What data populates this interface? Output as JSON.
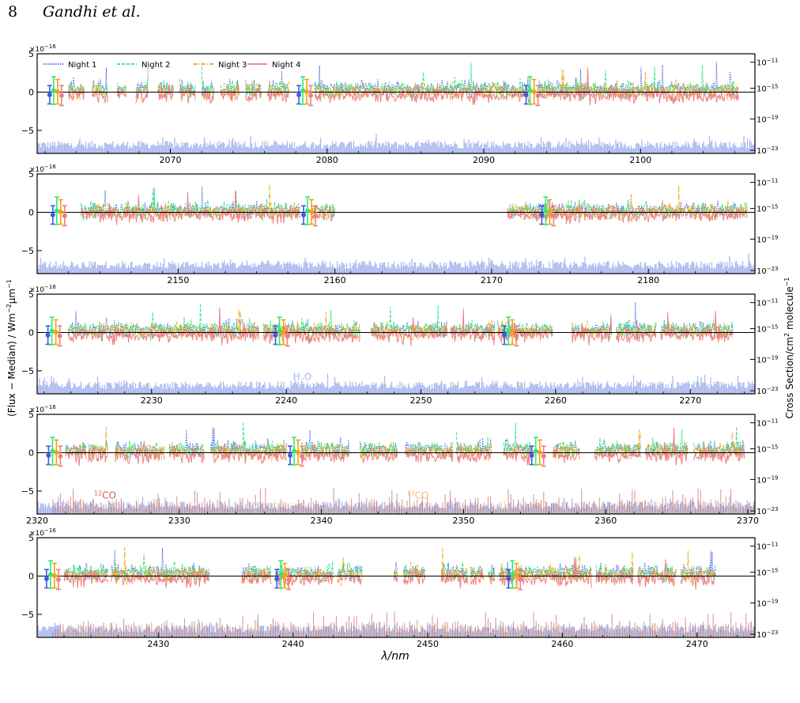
{
  "page": {
    "number": "8",
    "authors": "Gandhi et al."
  },
  "colors": {
    "night1": "#3a5ee0",
    "night2": "#2fe87a",
    "night3": "#f5a20a",
    "night4": "#ee8080",
    "h2o": "#aab8ee",
    "co12": "#c66060",
    "co13": "#f5c070"
  },
  "chart_data": {
    "type": "line",
    "ylabel": "(Flux − Median) / Wm",
    "ylabel_sup1": "−2",
    "ylabel_mid": "μm",
    "ylabel_sup2": "−1",
    "y2label": "Cross Section/cm",
    "y2label_sup1": "2",
    "y2label_mid": " molecule",
    "y2label_sup2": "−1",
    "xlabel": "λ/nm",
    "y_scale_label": "×10",
    "y_scale_exp": "−16",
    "ylim": [
      -8,
      5
    ],
    "yticks": [
      5,
      0,
      -5
    ],
    "yticks_text": [
      "5",
      "0",
      "−5"
    ],
    "y2_scale": "log",
    "y2_ticks": [
      "10",
      "10",
      "10",
      "10"
    ],
    "y2_ticks_exp": [
      "−11",
      "−15",
      "−19",
      "−23"
    ],
    "legend": {
      "placement": "top-left (panel 1)",
      "entries": [
        "Night 1",
        "Night 2",
        "Night 3",
        "Night 4"
      ]
    },
    "series": [
      {
        "name": "Night 1",
        "style": "dotted"
      },
      {
        "name": "Night 2",
        "style": "dashed"
      },
      {
        "name": "Night 3",
        "style": "dash-dot"
      },
      {
        "name": "Night 4",
        "style": "solid"
      }
    ],
    "panels": [
      {
        "xlim": [
          2061.5,
          2107.3
        ],
        "xticks": [
          2070,
          2080,
          2090,
          2100
        ],
        "data_ranges": [
          [
            2063.5,
            2064.5
          ],
          [
            2065,
            2066
          ],
          [
            2066.6,
            2067.2
          ],
          [
            2067.8,
            2068.6
          ],
          [
            2069.2,
            2070.2
          ],
          [
            2070.6,
            2071.6
          ],
          [
            2072,
            2072.8
          ],
          [
            2073.2,
            2074.4
          ],
          [
            2074.8,
            2075.8
          ],
          [
            2076.2,
            2077.6
          ],
          [
            2079.2,
            2093.0
          ],
          [
            2093.5,
            2106.3
          ]
        ],
        "offsets": [
          0.45,
          0.35,
          0.15,
          -0.35
        ],
        "errorbar_x": [
          2062.3,
          2078.2,
          2092.7
        ],
        "molecule_labels": []
      },
      {
        "xlim": [
          2141.0,
          2186.8
        ],
        "xticks": [
          2150,
          2160,
          2170,
          2180
        ],
        "data_ranges": [
          [
            2143.8,
            2157.8
          ],
          [
            2158.5,
            2160.0
          ],
          [
            2171.0,
            2186.3
          ]
        ],
        "offsets": [
          0.3,
          0.25,
          0.1,
          -0.3
        ],
        "errorbar_x": [
          2142.0,
          2158.0,
          2173.2
        ],
        "molecule_labels": []
      },
      {
        "xlim": [
          2221.5,
          2274.8
        ],
        "xticks": [
          2230,
          2240,
          2250,
          2260,
          2270
        ],
        "data_ranges": [
          [
            2223.8,
            2238.0
          ],
          [
            2238.3,
            2245.5
          ],
          [
            2246.3,
            2252.0
          ],
          [
            2252.2,
            2255.5
          ],
          [
            2255.7,
            2259.8
          ],
          [
            2261.2,
            2264.2
          ],
          [
            2264.5,
            2267.5
          ],
          [
            2267.8,
            2273.2
          ]
        ],
        "offsets": [
          0.4,
          0.4,
          0.2,
          -0.3
        ],
        "errorbar_x": [
          2222.3,
          2239.2,
          2256.2
        ],
        "molecule_labels": [
          {
            "text": "H",
            "sub": "2",
            "tail": "O",
            "x": 2240.5,
            "y": -6.2,
            "color_key": "h2o"
          }
        ]
      },
      {
        "xlim": [
          2320.0,
          2370.5
        ],
        "xticks": [
          2320,
          2330,
          2340,
          2350,
          2360,
          2370
        ],
        "data_ranges": [
          [
            2322.0,
            2323.5
          ],
          [
            2323.6,
            2325.0
          ],
          [
            2325.5,
            2329.0
          ],
          [
            2329.3,
            2331.8
          ],
          [
            2332.2,
            2337.6
          ],
          [
            2338.6,
            2342.0
          ],
          [
            2342.7,
            2345.4
          ],
          [
            2345.9,
            2349.3
          ],
          [
            2349.5,
            2352.0
          ],
          [
            2352.8,
            2354.8
          ],
          [
            2356.3,
            2358.2
          ],
          [
            2359.2,
            2362.5
          ],
          [
            2362.8,
            2365.8
          ],
          [
            2366.2,
            2369.8
          ]
        ],
        "offsets": [
          0.5,
          0.45,
          0.2,
          -0.3
        ],
        "errorbar_x": [
          2320.8,
          2337.8,
          2354.8
        ],
        "molecule_labels": [
          {
            "text": "",
            "sup": "12",
            "tail": "CO",
            "x": 2324.0,
            "y": -6.0,
            "color_key": "co12"
          },
          {
            "text": "",
            "sup": "13",
            "tail": "CO",
            "x": 2346.0,
            "y": -6.0,
            "color_key": "co13"
          }
        ]
      },
      {
        "xlim": [
          2421.0,
          2474.3
        ],
        "xticks": [
          2430,
          2440,
          2450,
          2460,
          2470
        ],
        "data_ranges": [
          [
            2423.0,
            2426.3
          ],
          [
            2426.5,
            2433.8
          ],
          [
            2436.2,
            2438.4
          ],
          [
            2438.7,
            2443.0
          ],
          [
            2443.3,
            2445.2
          ],
          [
            2447.5,
            2447.8
          ],
          [
            2448.2,
            2449.8
          ],
          [
            2451.0,
            2453.0
          ],
          [
            2453.2,
            2454.2
          ],
          [
            2454.5,
            2455.0
          ],
          [
            2455.3,
            2462.2
          ],
          [
            2462.5,
            2465.3
          ],
          [
            2465.6,
            2468.5
          ],
          [
            2468.8,
            2471.4
          ]
        ],
        "offsets": [
          0.5,
          0.45,
          0.2,
          -0.3
        ],
        "errorbar_x": [
          2421.7,
          2438.8,
          2456.0
        ],
        "molecule_labels": []
      }
    ]
  }
}
